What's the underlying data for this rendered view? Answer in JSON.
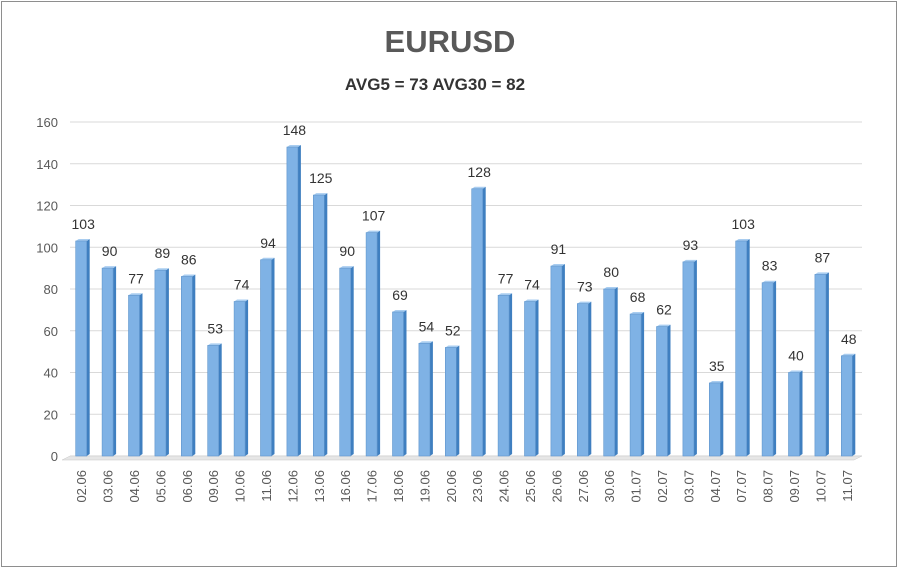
{
  "chart_data": {
    "type": "bar",
    "title": "EURUSD",
    "subtitle": "AVG5 = 73 AVG30 = 82",
    "xlabel": "",
    "ylabel": "",
    "ylim": [
      0,
      160
    ],
    "yticks": [
      0,
      20,
      40,
      60,
      80,
      100,
      120,
      140,
      160
    ],
    "grid": true,
    "categories": [
      "02.06",
      "03.06",
      "04.06",
      "05.06",
      "06.06",
      "09.06",
      "10.06",
      "11.06",
      "12.06",
      "13.06",
      "16.06",
      "17.06",
      "18.06",
      "19.06",
      "20.06",
      "23.06",
      "24.06",
      "25.06",
      "26.06",
      "27.06",
      "30.06",
      "01.07",
      "02.07",
      "03.07",
      "04.07",
      "07.07",
      "08.07",
      "09.07",
      "10.07",
      "11.07"
    ],
    "values": [
      103,
      90,
      77,
      89,
      86,
      53,
      74,
      94,
      148,
      125,
      90,
      107,
      69,
      54,
      52,
      128,
      77,
      74,
      91,
      73,
      80,
      68,
      62,
      93,
      35,
      103,
      83,
      40,
      87,
      48
    ],
    "colors": {
      "bar_fill": "#7fb2e5",
      "bar_light": "#a9cdf0",
      "bar_dark": "#3f7fc0",
      "grid": "#d9d9d9"
    }
  }
}
